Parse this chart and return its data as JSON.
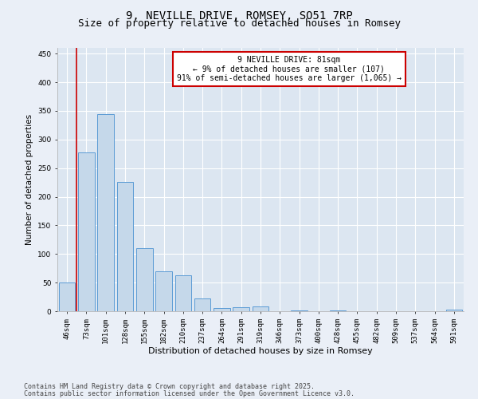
{
  "title": "9, NEVILLE DRIVE, ROMSEY, SO51 7RP",
  "subtitle": "Size of property relative to detached houses in Romsey",
  "xlabel": "Distribution of detached houses by size in Romsey",
  "ylabel": "Number of detached properties",
  "categories": [
    "46sqm",
    "73sqm",
    "101sqm",
    "128sqm",
    "155sqm",
    "182sqm",
    "210sqm",
    "237sqm",
    "264sqm",
    "291sqm",
    "319sqm",
    "346sqm",
    "373sqm",
    "400sqm",
    "428sqm",
    "455sqm",
    "482sqm",
    "509sqm",
    "537sqm",
    "564sqm",
    "591sqm"
  ],
  "values": [
    50,
    277,
    344,
    226,
    110,
    70,
    63,
    22,
    5,
    7,
    9,
    0,
    2,
    0,
    2,
    0,
    0,
    0,
    0,
    0,
    3
  ],
  "bar_color": "#c5d8ea",
  "bar_edge_color": "#5b9bd5",
  "vline_x": 0.5,
  "vline_color": "#cc0000",
  "annotation_text": "9 NEVILLE DRIVE: 81sqm\n← 9% of detached houses are smaller (107)\n91% of semi-detached houses are larger (1,065) →",
  "annotation_box_facecolor": "#ffffff",
  "annotation_box_edgecolor": "#cc0000",
  "ylim": [
    0,
    460
  ],
  "yticks": [
    0,
    50,
    100,
    150,
    200,
    250,
    300,
    350,
    400,
    450
  ],
  "background_color": "#eaeff7",
  "plot_background_color": "#dce6f1",
  "grid_color": "#ffffff",
  "footer_line1": "Contains HM Land Registry data © Crown copyright and database right 2025.",
  "footer_line2": "Contains public sector information licensed under the Open Government Licence v3.0.",
  "title_fontsize": 10,
  "subtitle_fontsize": 9,
  "xlabel_fontsize": 8,
  "ylabel_fontsize": 7.5,
  "tick_fontsize": 6.5,
  "annotation_fontsize": 7,
  "footer_fontsize": 6
}
